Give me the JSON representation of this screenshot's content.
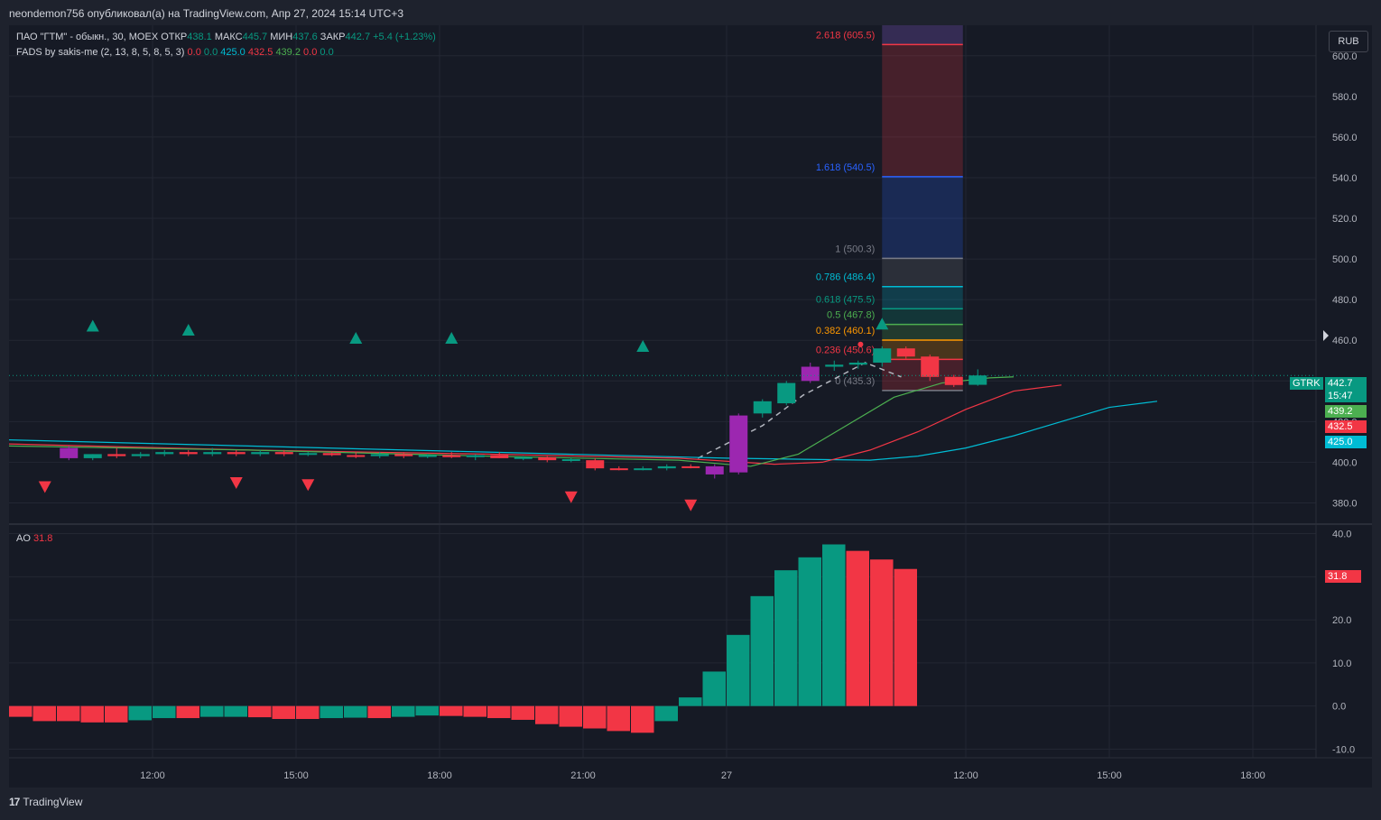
{
  "header": {
    "published_text": "neondemon756 опубликовал(а) на TradingView.com, Апр 27, 2024 15:14 UTC+3"
  },
  "legend": {
    "symbol_line": {
      "symbol": "ПАО \"ГТМ\" - обыкн., 30, MOEX",
      "open_label": "ОТКР",
      "open": "438.1",
      "high_label": "МАКС",
      "high": "445.7",
      "low_label": "МИН",
      "low": "437.6",
      "close_label": "ЗАКР",
      "close": "442.7",
      "change": "+5.4 (+1.23%)"
    },
    "indicator_line": {
      "name": "FADS by sakis-me (2, 13, 8, 5, 8, 5, 3)",
      "v1": "0.0",
      "v2": "0.0",
      "v3": "425.0",
      "v4": "432.5",
      "v5": "439.2",
      "v6": "0.0",
      "v7": "0.0"
    },
    "ao_line": {
      "name": "AO",
      "value": "31.8"
    }
  },
  "currency_button": "RUB",
  "price_tags": {
    "ticker": "GTRK",
    "last": "442.7",
    "countdown": "15:47",
    "green": "439.2",
    "red": "432.5",
    "blue": "425.0",
    "ao": "31.8"
  },
  "footer": {
    "logo": "17",
    "brand": "TradingView"
  },
  "colors": {
    "up": "#089981",
    "down": "#f23645",
    "purple": "#9c27b0",
    "fib_red": "#f23645",
    "fib_blue": "#2962ff",
    "green_ma": "#4caf50",
    "red_ma": "#f23645",
    "blue_ma": "#00bcd4"
  },
  "chart_data": [
    {
      "type": "candlestick",
      "y_axis": {
        "min": 370,
        "max": 615,
        "ticks": [
          "380.0",
          "400.0",
          "420.0",
          "440.0",
          "460.0",
          "480.0",
          "500.0",
          "520.0",
          "540.0",
          "560.0",
          "580.0",
          "600.0"
        ]
      },
      "x_axis": {
        "ticks": [
          {
            "label": "12:00",
            "x": 6
          },
          {
            "label": "15:00",
            "x": 12
          },
          {
            "label": "18:00",
            "x": 18
          },
          {
            "label": "21:00",
            "x": 24
          },
          {
            "label": "27",
            "x": 30
          },
          {
            "label": "12:00",
            "x": 40
          },
          {
            "label": "15:00",
            "x": 46
          },
          {
            "label": "18:00",
            "x": 52
          },
          {
            "label": "21:00",
            "x": 58
          }
        ],
        "max_index": 63
      },
      "candles": [
        {
          "i": 2.5,
          "o": 407,
          "h": 408,
          "l": 401,
          "c": 402,
          "k": "purple"
        },
        {
          "i": 3.5,
          "o": 402,
          "h": 404,
          "l": 401,
          "c": 404,
          "k": "up"
        },
        {
          "i": 4.5,
          "o": 404,
          "h": 407,
          "l": 402,
          "c": 403,
          "k": "down"
        },
        {
          "i": 5.5,
          "o": 403,
          "h": 405,
          "l": 402,
          "c": 404,
          "k": "up"
        },
        {
          "i": 6.5,
          "o": 404,
          "h": 406,
          "l": 403,
          "c": 405,
          "k": "up"
        },
        {
          "i": 7.5,
          "o": 405,
          "h": 406,
          "l": 403,
          "c": 404,
          "k": "down"
        },
        {
          "i": 8.5,
          "o": 404,
          "h": 407,
          "l": 403,
          "c": 405,
          "k": "up"
        },
        {
          "i": 9.5,
          "o": 405,
          "h": 406,
          "l": 403,
          "c": 404,
          "k": "down"
        },
        {
          "i": 10.5,
          "o": 404,
          "h": 406,
          "l": 403,
          "c": 405,
          "k": "up"
        },
        {
          "i": 11.5,
          "o": 405,
          "h": 406,
          "l": 403,
          "c": 404,
          "k": "down"
        },
        {
          "i": 12.5,
          "o": 404,
          "h": 405,
          "l": 403,
          "c": 404.5,
          "k": "up"
        },
        {
          "i": 13.5,
          "o": 404.5,
          "h": 405,
          "l": 403,
          "c": 403.5,
          "k": "down"
        },
        {
          "i": 14.5,
          "o": 403.5,
          "h": 405,
          "l": 402,
          "c": 403,
          "k": "down"
        },
        {
          "i": 15.5,
          "o": 403,
          "h": 405,
          "l": 402,
          "c": 404,
          "k": "up"
        },
        {
          "i": 16.5,
          "o": 404,
          "h": 405,
          "l": 402,
          "c": 403,
          "k": "down"
        },
        {
          "i": 17.5,
          "o": 403,
          "h": 404,
          "l": 402,
          "c": 403.5,
          "k": "up"
        },
        {
          "i": 18.5,
          "o": 403.5,
          "h": 405,
          "l": 402,
          "c": 402.5,
          "k": "down"
        },
        {
          "i": 19.5,
          "o": 402.5,
          "h": 404,
          "l": 401,
          "c": 403.5,
          "k": "up"
        },
        {
          "i": 20.5,
          "o": 403.5,
          "h": 405,
          "l": 402,
          "c": 402,
          "k": "down"
        },
        {
          "i": 21.5,
          "o": 402,
          "h": 403,
          "l": 401,
          "c": 402.5,
          "k": "up"
        },
        {
          "i": 22.5,
          "o": 402.5,
          "h": 403,
          "l": 400,
          "c": 401,
          "k": "down"
        },
        {
          "i": 23.5,
          "o": 401,
          "h": 402,
          "l": 400,
          "c": 401.5,
          "k": "up"
        },
        {
          "i": 24.5,
          "o": 401,
          "h": 402,
          "l": 396,
          "c": 397,
          "k": "down"
        },
        {
          "i": 25.5,
          "o": 397,
          "h": 398,
          "l": 396,
          "c": 396.5,
          "k": "down"
        },
        {
          "i": 26.5,
          "o": 396.5,
          "h": 398,
          "l": 396,
          "c": 397,
          "k": "up"
        },
        {
          "i": 27.5,
          "o": 397,
          "h": 399,
          "l": 396,
          "c": 398,
          "k": "up"
        },
        {
          "i": 28.5,
          "o": 398,
          "h": 399,
          "l": 397,
          "c": 397.5,
          "k": "down"
        },
        {
          "i": 29.5,
          "o": 398,
          "h": 399,
          "l": 392,
          "c": 394,
          "k": "purple"
        },
        {
          "i": 30.5,
          "o": 395,
          "h": 424,
          "l": 394,
          "c": 423,
          "k": "purple"
        },
        {
          "i": 31.5,
          "o": 424,
          "h": 431,
          "l": 422,
          "c": 430,
          "k": "up"
        },
        {
          "i": 32.5,
          "o": 429,
          "h": 440,
          "l": 428,
          "c": 439,
          "k": "up"
        },
        {
          "i": 33.5,
          "o": 440,
          "h": 449,
          "l": 439,
          "c": 447,
          "k": "purple"
        },
        {
          "i": 34.5,
          "o": 447,
          "h": 450,
          "l": 445,
          "c": 448,
          "k": "up"
        },
        {
          "i": 35.5,
          "o": 448,
          "h": 450,
          "l": 446,
          "c": 449,
          "k": "up"
        },
        {
          "i": 36.5,
          "o": 449,
          "h": 457,
          "l": 447,
          "c": 456,
          "k": "up"
        },
        {
          "i": 37.5,
          "o": 456,
          "h": 457,
          "l": 451,
          "c": 452,
          "k": "down"
        },
        {
          "i": 38.5,
          "o": 452,
          "h": 453,
          "l": 440,
          "c": 442,
          "k": "down"
        },
        {
          "i": 39.5,
          "o": 442,
          "h": 443,
          "l": 437,
          "c": 438,
          "k": "down"
        },
        {
          "i": 40.5,
          "o": 438.1,
          "h": 445.7,
          "l": 437.6,
          "c": 442.7,
          "k": "up"
        }
      ],
      "buy_signals": [
        {
          "i": 3.5,
          "y": 467
        },
        {
          "i": 7.5,
          "y": 465
        },
        {
          "i": 14.5,
          "y": 461
        },
        {
          "i": 18.5,
          "y": 461
        },
        {
          "i": 26.5,
          "y": 457
        },
        {
          "i": 36.5,
          "y": 468
        }
      ],
      "sell_signals": [
        {
          "i": 1.5,
          "y": 388
        },
        {
          "i": 9.5,
          "y": 390
        },
        {
          "i": 12.5,
          "y": 389
        },
        {
          "i": 23.5,
          "y": 383
        },
        {
          "i": 28.5,
          "y": 379
        }
      ],
      "fib": {
        "x_from": 36.5,
        "x_to": 39.5,
        "levels": [
          {
            "label": "2.618 (605.5)",
            "value": 605.5,
            "color": "#f23645"
          },
          {
            "label": "1.618 (540.5)",
            "value": 540.5,
            "color": "#2962ff"
          },
          {
            "label": "1 (500.3)",
            "value": 500.3,
            "color": "#787b86"
          },
          {
            "label": "0.786 (486.4)",
            "value": 486.4,
            "color": "#00bcd4"
          },
          {
            "label": "0.618 (475.5)",
            "value": 475.5,
            "color": "#089981"
          },
          {
            "label": "0.5 (467.8)",
            "value": 467.8,
            "color": "#4caf50"
          },
          {
            "label": "0.382 (460.1)",
            "value": 460.1,
            "color": "#ff9800"
          },
          {
            "label": "0.236 (450.6)",
            "value": 450.6,
            "color": "#f23645"
          },
          {
            "label": "0 (435.3)",
            "value": 435.3,
            "color": "#787b86"
          }
        ]
      },
      "moving_averages": [
        {
          "color": "#00bcd4",
          "points": [
            [
              0,
              411
            ],
            [
              10,
              408
            ],
            [
              20,
              405
            ],
            [
              30,
              402
            ],
            [
              36,
              401
            ],
            [
              38,
              403
            ],
            [
              40,
              407
            ],
            [
              42,
              413
            ],
            [
              44,
              420
            ],
            [
              46,
              427
            ],
            [
              48,
              430
            ]
          ]
        },
        {
          "color": "#f23645",
          "points": [
            [
              0,
              409
            ],
            [
              10,
              406
            ],
            [
              20,
              404
            ],
            [
              28,
              402
            ],
            [
              32,
              399
            ],
            [
              34,
              400
            ],
            [
              36,
              406
            ],
            [
              38,
              415
            ],
            [
              40,
              426
            ],
            [
              42,
              435
            ],
            [
              44,
              438
            ]
          ]
        },
        {
          "color": "#4caf50",
          "points": [
            [
              0,
              408
            ],
            [
              10,
              406
            ],
            [
              20,
              403
            ],
            [
              28,
              401
            ],
            [
              30,
              399
            ],
            [
              31,
              398
            ],
            [
              33,
              404
            ],
            [
              35,
              418
            ],
            [
              37,
              432
            ],
            [
              39,
              439
            ],
            [
              41,
              441.5
            ],
            [
              42,
              442
            ]
          ]
        }
      ]
    },
    {
      "type": "bar",
      "title": "AO",
      "y_axis": {
        "min": -12,
        "max": 42,
        "ticks": [
          "-10.0",
          "0.0",
          "10.0",
          "20.0",
          "30.0",
          "40.0"
        ]
      },
      "bars": [
        {
          "i": 0.5,
          "v": -2.5,
          "k": "down"
        },
        {
          "i": 1.5,
          "v": -3.5,
          "k": "down"
        },
        {
          "i": 2.5,
          "v": -3.5,
          "k": "down"
        },
        {
          "i": 3.5,
          "v": -3.8,
          "k": "down"
        },
        {
          "i": 4.5,
          "v": -3.8,
          "k": "down"
        },
        {
          "i": 5.5,
          "v": -3.3,
          "k": "up"
        },
        {
          "i": 6.5,
          "v": -2.8,
          "k": "up"
        },
        {
          "i": 7.5,
          "v": -2.8,
          "k": "down"
        },
        {
          "i": 8.5,
          "v": -2.5,
          "k": "up"
        },
        {
          "i": 9.5,
          "v": -2.5,
          "k": "up"
        },
        {
          "i": 10.5,
          "v": -2.6,
          "k": "down"
        },
        {
          "i": 11.5,
          "v": -3.0,
          "k": "down"
        },
        {
          "i": 12.5,
          "v": -3.0,
          "k": "down"
        },
        {
          "i": 13.5,
          "v": -2.8,
          "k": "up"
        },
        {
          "i": 14.5,
          "v": -2.7,
          "k": "up"
        },
        {
          "i": 15.5,
          "v": -2.8,
          "k": "down"
        },
        {
          "i": 16.5,
          "v": -2.5,
          "k": "up"
        },
        {
          "i": 17.5,
          "v": -2.2,
          "k": "up"
        },
        {
          "i": 18.5,
          "v": -2.3,
          "k": "down"
        },
        {
          "i": 19.5,
          "v": -2.5,
          "k": "down"
        },
        {
          "i": 20.5,
          "v": -2.8,
          "k": "down"
        },
        {
          "i": 21.5,
          "v": -3.2,
          "k": "down"
        },
        {
          "i": 22.5,
          "v": -4.2,
          "k": "down"
        },
        {
          "i": 23.5,
          "v": -4.8,
          "k": "down"
        },
        {
          "i": 24.5,
          "v": -5.2,
          "k": "down"
        },
        {
          "i": 25.5,
          "v": -5.8,
          "k": "down"
        },
        {
          "i": 26.5,
          "v": -6.2,
          "k": "down"
        },
        {
          "i": 27.5,
          "v": -3.5,
          "k": "up"
        },
        {
          "i": 28.5,
          "v": 2.0,
          "k": "up"
        },
        {
          "i": 29.5,
          "v": 8.0,
          "k": "up"
        },
        {
          "i": 30.5,
          "v": 16.5,
          "k": "up"
        },
        {
          "i": 31.5,
          "v": 25.5,
          "k": "up"
        },
        {
          "i": 32.5,
          "v": 31.5,
          "k": "up"
        },
        {
          "i": 33.5,
          "v": 34.5,
          "k": "up"
        },
        {
          "i": 34.5,
          "v": 37.5,
          "k": "up"
        },
        {
          "i": 35.5,
          "v": 36.0,
          "k": "down"
        },
        {
          "i": 36.5,
          "v": 34.0,
          "k": "down"
        },
        {
          "i": 37.5,
          "v": 31.8,
          "k": "down"
        }
      ]
    }
  ]
}
